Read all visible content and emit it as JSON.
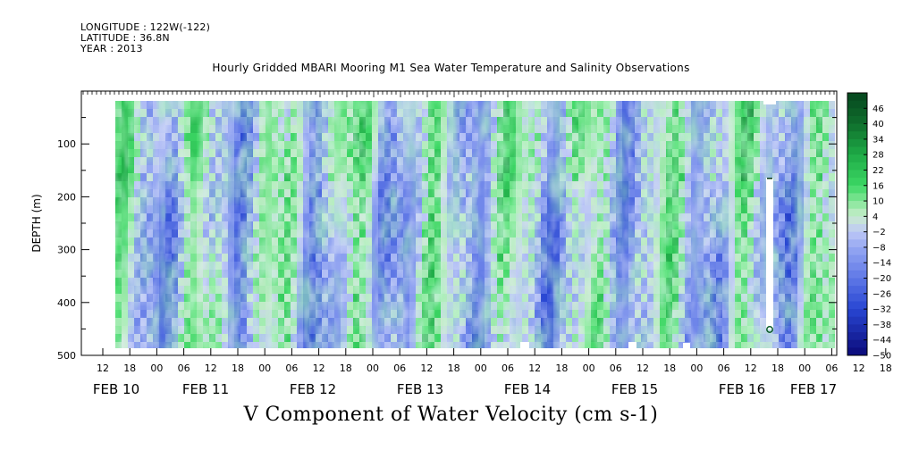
{
  "header": {
    "longitude": "LONGITUDE : 122W(-122)",
    "latitude": "LATITUDE : 36.8N",
    "year": "YEAR : 2013"
  },
  "chart_data": {
    "type": "heatmap",
    "title": "Hourly Gridded MBARI Mooring M1 Sea Water Temperature and Salinity Observations",
    "xlabel": "V Component of Water Velocity (cm s-1)",
    "ylabel": "DEPTH (m)",
    "ylim": [
      500,
      0
    ],
    "yticks": [
      100,
      200,
      300,
      400,
      500
    ],
    "x_hour_tick_labels": [
      "12",
      "18",
      "00",
      "06",
      "12",
      "18",
      "00",
      "06",
      "12",
      "18",
      "00",
      "06",
      "12",
      "18",
      "00",
      "06",
      "12",
      "18",
      "00",
      "06",
      "12",
      "18",
      "00",
      "06",
      "12",
      "18",
      "00",
      "06",
      "12",
      "18",
      "00",
      "06"
    ],
    "date_labels": [
      "FEB 10",
      "FEB 11",
      "FEB 12",
      "FEB 13",
      "FEB 14",
      "FEB 15",
      "FEB 16",
      "FEB 17"
    ],
    "colorbar": {
      "labels": [
        46,
        40,
        34,
        28,
        22,
        16,
        10,
        4,
        -2,
        -8,
        -14,
        -20,
        -26,
        -32,
        -38,
        -44,
        -50
      ],
      "range": [
        -50,
        52
      ],
      "colors": {
        "min": "#0a0a78",
        "mid_negative": "#8fa3ef",
        "near_zero": "#c9e6c9",
        "mid_positive": "#2bd45a",
        "max": "#064f26"
      }
    },
    "pattern_summary": "Alternating vertical bands of negative (blue) and positive (green) meridional velocity throughout the water column, values mostly between -20 and +22 cm s-1; data gap near FEB 16 18h below about 170 m."
  }
}
